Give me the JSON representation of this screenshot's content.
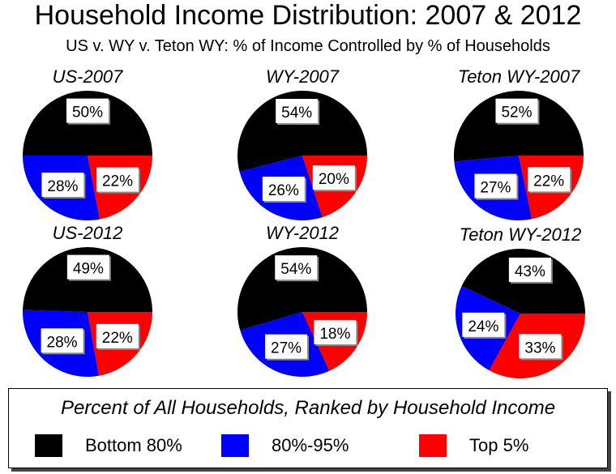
{
  "title": "Household Income Distribution: 2007 & 2012",
  "subtitle": "US v. WY v. Teton WY: % of Income Controlled by % of Households",
  "legend": {
    "title": "Percent of All Households, Ranked by Household Income",
    "items": [
      {
        "label": "Bottom 80%",
        "color": "#000000"
      },
      {
        "label": "80%-95%",
        "color": "#0000ff"
      },
      {
        "label": "Top 5%",
        "color": "#ff0000"
      }
    ]
  },
  "chart_data": [
    {
      "type": "pie",
      "title": "US-2007",
      "categories": [
        "Bottom 80%",
        "80%-95%",
        "Top 5%"
      ],
      "values": [
        50,
        28,
        22
      ],
      "labels": [
        "50%",
        "28%",
        "22%"
      ]
    },
    {
      "type": "pie",
      "title": "WY-2007",
      "categories": [
        "Bottom 80%",
        "80%-95%",
        "Top 5%"
      ],
      "values": [
        54,
        26,
        20
      ],
      "labels": [
        "54%",
        "26%",
        "20%"
      ]
    },
    {
      "type": "pie",
      "title": "Teton WY-2007",
      "categories": [
        "Bottom 80%",
        "80%-95%",
        "Top 5%"
      ],
      "values": [
        52,
        27,
        22
      ],
      "labels": [
        "52%",
        "27%",
        "22%"
      ]
    },
    {
      "type": "pie",
      "title": "US-2012",
      "categories": [
        "Bottom 80%",
        "80%-95%",
        "Top 5%"
      ],
      "values": [
        49,
        28,
        22
      ],
      "labels": [
        "49%",
        "28%",
        "22%"
      ]
    },
    {
      "type": "pie",
      "title": "WY-2012",
      "categories": [
        "Bottom 80%",
        "80%-95%",
        "Top 5%"
      ],
      "values": [
        54,
        27,
        18
      ],
      "labels": [
        "54%",
        "27%",
        "18%"
      ]
    },
    {
      "type": "pie",
      "title": "Teton WY-2012",
      "categories": [
        "Bottom 80%",
        "80%-95%",
        "Top 5%"
      ],
      "values": [
        43,
        24,
        33
      ],
      "labels": [
        "43%",
        "24%",
        "33%"
      ]
    }
  ]
}
